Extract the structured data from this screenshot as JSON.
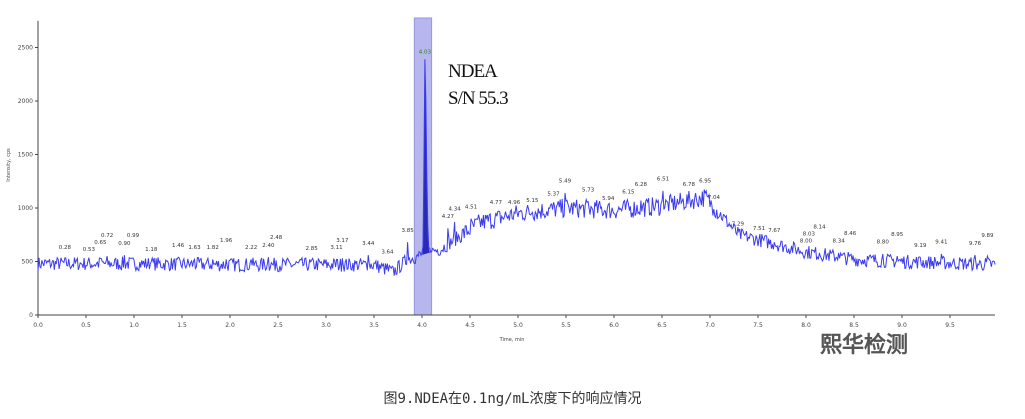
{
  "caption": "图9.NDEA在0.1ng/mL浓度下的响应情况",
  "annotation": {
    "compound": "NDEA",
    "sn": "S/N 55.3"
  },
  "watermark": "熙华检测",
  "chart_data": {
    "type": "line",
    "title": "",
    "xlabel": "Time, min",
    "ylabel": "Intensity, cps",
    "xlim": [
      0,
      10
    ],
    "ylim": [
      0,
      2750
    ],
    "xticks": [
      0.0,
      0.5,
      1.0,
      1.5,
      2.0,
      2.5,
      3.0,
      3.5,
      4.0,
      4.5,
      5.0,
      5.5,
      6.0,
      6.5,
      7.0,
      7.5,
      8.0,
      8.5,
      9.0,
      9.5
    ],
    "yticks": [
      0,
      500,
      1000,
      1500,
      2000,
      2500
    ],
    "grid": false,
    "line_color": "#3b3bf0",
    "highlight_color": "#9a9ae8",
    "highlight_range": [
      3.92,
      4.1
    ],
    "baseline": {
      "x": [
        0,
        1,
        2,
        3,
        3.5,
        3.7,
        3.85,
        4.0,
        4.2,
        4.6,
        5.0,
        5.5,
        6.0,
        6.5,
        6.95,
        7.1,
        7.3,
        7.7,
        8.0,
        8.5,
        9.0,
        10.0
      ],
      "y": [
        480,
        480,
        470,
        470,
        470,
        400,
        520,
        560,
        620,
        860,
        950,
        1000,
        980,
        1020,
        1100,
        950,
        750,
        660,
        590,
        520,
        500,
        470
      ]
    },
    "main_peak": {
      "rt": 4.03,
      "height": 2390
    },
    "peaks": [
      {
        "rt": 0.28,
        "y": 560
      },
      {
        "rt": 0.53,
        "y": 540
      },
      {
        "rt": 0.65,
        "y": 570
      },
      {
        "rt": 0.72,
        "y": 590
      },
      {
        "rt": 0.9,
        "y": 600
      },
      {
        "rt": 0.99,
        "y": 570
      },
      {
        "rt": 1.18,
        "y": 540
      },
      {
        "rt": 1.46,
        "y": 580
      },
      {
        "rt": 1.63,
        "y": 560
      },
      {
        "rt": 1.82,
        "y": 560
      },
      {
        "rt": 1.96,
        "y": 560
      },
      {
        "rt": 2.22,
        "y": 560
      },
      {
        "rt": 2.4,
        "y": 580
      },
      {
        "rt": 2.48,
        "y": 550
      },
      {
        "rt": 2.85,
        "y": 550
      },
      {
        "rt": 3.11,
        "y": 560
      },
      {
        "rt": 3.17,
        "y": 570
      },
      {
        "rt": 3.44,
        "y": 600
      },
      {
        "rt": 3.64,
        "y": 520
      },
      {
        "rt": 3.85,
        "y": 720
      },
      {
        "rt": 4.03,
        "y": 2390
      },
      {
        "rt": 4.27,
        "y": 850
      },
      {
        "rt": 4.34,
        "y": 910
      },
      {
        "rt": 4.51,
        "y": 940
      },
      {
        "rt": 4.77,
        "y": 980
      },
      {
        "rt": 4.96,
        "y": 980
      },
      {
        "rt": 5.15,
        "y": 1000
      },
      {
        "rt": 5.37,
        "y": 1060
      },
      {
        "rt": 5.49,
        "y": 1180
      },
      {
        "rt": 5.73,
        "y": 1100
      },
      {
        "rt": 5.94,
        "y": 1020
      },
      {
        "rt": 6.15,
        "y": 1080
      },
      {
        "rt": 6.28,
        "y": 1110
      },
      {
        "rt": 6.51,
        "y": 1200
      },
      {
        "rt": 6.78,
        "y": 1150
      },
      {
        "rt": 6.95,
        "y": 1180
      },
      {
        "rt": 7.04,
        "y": 1030
      },
      {
        "rt": 7.29,
        "y": 780
      },
      {
        "rt": 7.51,
        "y": 740
      },
      {
        "rt": 7.67,
        "y": 720
      },
      {
        "rt": 8.0,
        "y": 620
      },
      {
        "rt": 8.03,
        "y": 620
      },
      {
        "rt": 8.14,
        "y": 620
      },
      {
        "rt": 8.34,
        "y": 620
      },
      {
        "rt": 8.46,
        "y": 600
      },
      {
        "rt": 8.8,
        "y": 610
      },
      {
        "rt": 8.95,
        "y": 590
      },
      {
        "rt": 9.19,
        "y": 580
      },
      {
        "rt": 9.41,
        "y": 610
      },
      {
        "rt": 9.76,
        "y": 600
      },
      {
        "rt": 9.89,
        "y": 590
      }
    ]
  }
}
